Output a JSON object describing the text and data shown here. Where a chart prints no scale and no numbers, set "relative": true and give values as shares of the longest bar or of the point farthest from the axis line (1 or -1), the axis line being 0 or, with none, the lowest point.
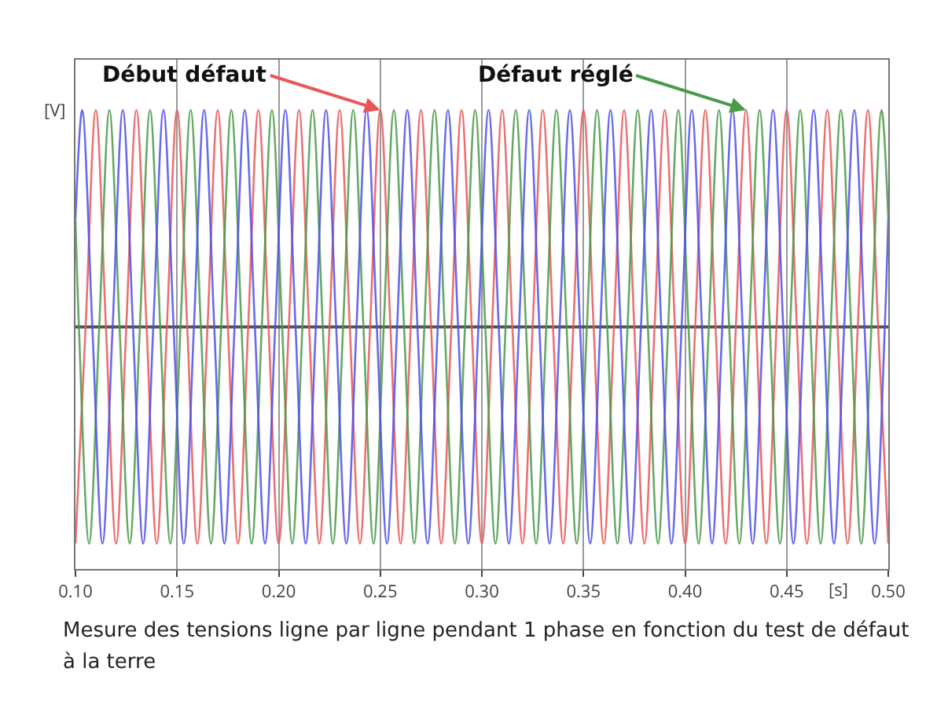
{
  "chart_data": {
    "type": "line",
    "relative": true,
    "xlabel": "[s]",
    "ylabel": "[V]",
    "xlim": [
      0.1,
      0.5
    ],
    "xticks": [
      {
        "value": 0.1,
        "label": "0.10"
      },
      0.15,
      {
        "value": 0.2,
        "label": "0.20"
      },
      0.25,
      {
        "value": 0.3,
        "label": "0.30"
      },
      0.35,
      {
        "value": 0.4,
        "label": "0.40"
      },
      0.45,
      {
        "value": 0.5,
        "label": "0.50"
      }
    ],
    "grid": "x",
    "marker": "none",
    "line_style": "solid",
    "x": [
      0.1,
      0.105,
      0.11,
      0.115,
      0.12,
      0.125,
      0.13,
      0.135,
      0.14,
      0.145,
      0.15,
      0.155,
      0.16,
      0.165,
      0.17,
      0.175,
      0.18,
      0.185,
      0.19,
      0.195,
      0.2,
      0.205,
      0.21,
      0.215,
      0.22,
      0.225,
      0.23,
      0.235,
      0.24,
      0.245,
      0.25,
      0.255,
      0.26,
      0.265,
      0.27,
      0.275,
      0.28,
      0.285,
      0.29,
      0.295,
      0.3,
      0.305,
      0.31,
      0.315,
      0.32,
      0.325,
      0.33,
      0.335,
      0.34,
      0.345,
      0.35,
      0.355,
      0.36,
      0.365,
      0.37,
      0.375,
      0.38,
      0.385,
      0.39,
      0.395,
      0.4,
      0.405,
      0.41,
      0.415,
      0.42,
      0.425,
      0.43,
      0.435,
      0.44,
      0.445,
      0.45,
      0.455,
      0.46,
      0.465,
      0.47,
      0.475,
      0.48,
      0.485,
      0.49,
      0.495,
      0.5
    ],
    "series": [
      {
        "color": "#e8585a",
        "values": [
          -1,
          0,
          1,
          0,
          -1,
          0,
          1,
          0,
          -1,
          0,
          1,
          0,
          -1,
          0,
          1,
          0,
          -1,
          0,
          1,
          0,
          -1,
          0,
          1,
          0,
          -1,
          0,
          1,
          0,
          -1,
          0,
          1,
          0,
          -1,
          0,
          1,
          0,
          -1,
          0,
          1,
          0,
          -1,
          0,
          1,
          0,
          -1,
          0,
          1,
          0,
          -1,
          0,
          1,
          0,
          -1,
          0,
          1,
          0,
          -1,
          0,
          1,
          0,
          -1,
          0,
          1,
          0,
          -1,
          0,
          1,
          0,
          -1,
          0,
          1,
          0,
          -1,
          0,
          1,
          0,
          -1,
          0,
          1,
          0,
          -1
        ]
      },
      {
        "color": "#4b9a4b",
        "x": [
          0.1,
          0.1017,
          0.1067,
          0.1117,
          0.1167,
          0.1217,
          0.1267,
          0.1317,
          0.1367,
          0.1417,
          0.1467,
          0.1517,
          0.1567,
          0.1617,
          0.1667,
          0.1717,
          0.1767,
          0.1817,
          0.1867,
          0.1917,
          0.1967,
          0.2017,
          0.2067,
          0.2117,
          0.2167,
          0.2217,
          0.2267,
          0.2317,
          0.2367,
          0.2417,
          0.2467,
          0.2517,
          0.2567,
          0.2617,
          0.2667,
          0.2717,
          0.2767,
          0.2817,
          0.2867,
          0.2917,
          0.2967,
          0.3017,
          0.3067,
          0.3117,
          0.3167,
          0.3217,
          0.3267,
          0.3317,
          0.3367,
          0.3417,
          0.3467,
          0.3517,
          0.3567,
          0.3617,
          0.3667,
          0.3717,
          0.3767,
          0.3817,
          0.3867,
          0.3917,
          0.3967,
          0.4017,
          0.4067,
          0.4117,
          0.4167,
          0.4217,
          0.4267,
          0.4317,
          0.4367,
          0.4417,
          0.4467,
          0.4517,
          0.4567,
          0.4617,
          0.4667,
          0.4717,
          0.4767,
          0.4817,
          0.4867,
          0.4917,
          0.4967,
          0.5
        ],
        "values": [
          0.5,
          0,
          -1,
          0,
          1,
          0,
          -1,
          0,
          1,
          0,
          -1,
          0,
          1,
          0,
          -1,
          0,
          1,
          0,
          -1,
          0,
          1,
          0,
          -1,
          0,
          1,
          0,
          -1,
          0,
          1,
          0,
          -1,
          0,
          1,
          0,
          -1,
          0,
          1,
          0,
          -1,
          0,
          1,
          0,
          -1,
          0,
          1,
          0,
          -1,
          0,
          1,
          0,
          -1,
          0,
          1,
          0,
          -1,
          0,
          1,
          0,
          -1,
          0,
          1,
          0,
          -1,
          0,
          1,
          0,
          -1,
          0,
          1,
          0,
          -1,
          0,
          1,
          0,
          -1,
          0,
          1,
          0,
          -1,
          0,
          1,
          0.5
        ]
      },
      {
        "color": "#5050e8",
        "x": [
          0.1,
          0.1033,
          0.1083,
          0.1133,
          0.1183,
          0.1233,
          0.1283,
          0.1333,
          0.1383,
          0.1433,
          0.1483,
          0.1533,
          0.1583,
          0.1633,
          0.1683,
          0.1733,
          0.1783,
          0.1833,
          0.1883,
          0.1933,
          0.1983,
          0.2033,
          0.2083,
          0.2133,
          0.2183,
          0.2233,
          0.2283,
          0.2333,
          0.2383,
          0.2433,
          0.2483,
          0.2533,
          0.2583,
          0.2633,
          0.2683,
          0.2733,
          0.2783,
          0.2833,
          0.2883,
          0.2933,
          0.2983,
          0.3033,
          0.3083,
          0.3133,
          0.3183,
          0.3233,
          0.3283,
          0.3333,
          0.3383,
          0.3433,
          0.3483,
          0.3533,
          0.3583,
          0.3633,
          0.3683,
          0.3733,
          0.3783,
          0.3833,
          0.3883,
          0.3933,
          0.3983,
          0.4033,
          0.4083,
          0.4133,
          0.4183,
          0.4233,
          0.4283,
          0.4333,
          0.4383,
          0.4433,
          0.4483,
          0.4533,
          0.4583,
          0.4633,
          0.4683,
          0.4733,
          0.4783,
          0.4833,
          0.4883,
          0.4933,
          0.4983,
          0.5
        ],
        "values": [
          0.5,
          1,
          0,
          -1,
          0,
          1,
          0,
          -1,
          0,
          1,
          0,
          -1,
          0,
          1,
          0,
          -1,
          0,
          1,
          0,
          -1,
          0,
          1,
          0,
          -1,
          0,
          1,
          0,
          -1,
          0,
          1,
          0,
          -1,
          0,
          1,
          0,
          -1,
          0,
          1,
          0,
          -1,
          0,
          1,
          0,
          -1,
          0,
          1,
          0,
          -1,
          0,
          1,
          0,
          -1,
          0,
          1,
          0,
          -1,
          0,
          1,
          0,
          -1,
          0,
          1,
          0,
          -1,
          0,
          1,
          0,
          -1,
          0,
          1,
          0,
          -1,
          0,
          1,
          0,
          -1,
          0,
          1,
          0,
          -1,
          0,
          0.5
        ]
      }
    ],
    "annotations": [
      {
        "text": "Début défaut",
        "x": 0.25,
        "y": 1
      },
      {
        "text": "Défaut réglé",
        "x": 0.43,
        "y": 1
      },
      "Mesure des tensions ligne par ligne pendant 1 phase en fonction du test de défaut à la terre"
    ]
  }
}
